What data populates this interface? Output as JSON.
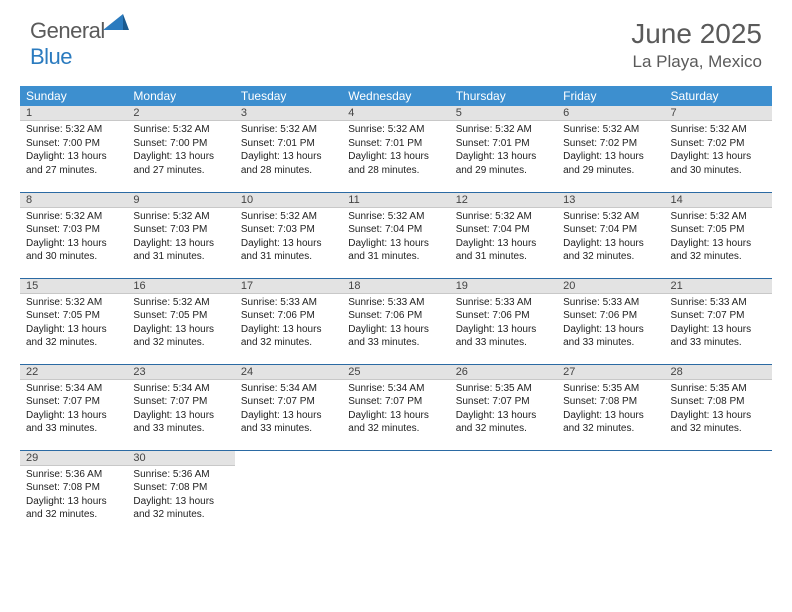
{
  "brand": {
    "part1": "General",
    "part2": "Blue"
  },
  "title": "June 2025",
  "location": "La Playa, Mexico",
  "colors": {
    "header_bg": "#3d8fcf",
    "row_divider": "#2b6aa3",
    "daynum_bg": "#e3e3e3",
    "text": "#333333",
    "brand_gray": "#5a5a5a",
    "brand_blue": "#2b7bbf"
  },
  "day_headers": [
    "Sunday",
    "Monday",
    "Tuesday",
    "Wednesday",
    "Thursday",
    "Friday",
    "Saturday"
  ],
  "weeks": [
    [
      {
        "n": "1",
        "sr": "5:32 AM",
        "ss": "7:00 PM",
        "dl": "13 hours and 27 minutes."
      },
      {
        "n": "2",
        "sr": "5:32 AM",
        "ss": "7:00 PM",
        "dl": "13 hours and 27 minutes."
      },
      {
        "n": "3",
        "sr": "5:32 AM",
        "ss": "7:01 PM",
        "dl": "13 hours and 28 minutes."
      },
      {
        "n": "4",
        "sr": "5:32 AM",
        "ss": "7:01 PM",
        "dl": "13 hours and 28 minutes."
      },
      {
        "n": "5",
        "sr": "5:32 AM",
        "ss": "7:01 PM",
        "dl": "13 hours and 29 minutes."
      },
      {
        "n": "6",
        "sr": "5:32 AM",
        "ss": "7:02 PM",
        "dl": "13 hours and 29 minutes."
      },
      {
        "n": "7",
        "sr": "5:32 AM",
        "ss": "7:02 PM",
        "dl": "13 hours and 30 minutes."
      }
    ],
    [
      {
        "n": "8",
        "sr": "5:32 AM",
        "ss": "7:03 PM",
        "dl": "13 hours and 30 minutes."
      },
      {
        "n": "9",
        "sr": "5:32 AM",
        "ss": "7:03 PM",
        "dl": "13 hours and 31 minutes."
      },
      {
        "n": "10",
        "sr": "5:32 AM",
        "ss": "7:03 PM",
        "dl": "13 hours and 31 minutes."
      },
      {
        "n": "11",
        "sr": "5:32 AM",
        "ss": "7:04 PM",
        "dl": "13 hours and 31 minutes."
      },
      {
        "n": "12",
        "sr": "5:32 AM",
        "ss": "7:04 PM",
        "dl": "13 hours and 31 minutes."
      },
      {
        "n": "13",
        "sr": "5:32 AM",
        "ss": "7:04 PM",
        "dl": "13 hours and 32 minutes."
      },
      {
        "n": "14",
        "sr": "5:32 AM",
        "ss": "7:05 PM",
        "dl": "13 hours and 32 minutes."
      }
    ],
    [
      {
        "n": "15",
        "sr": "5:32 AM",
        "ss": "7:05 PM",
        "dl": "13 hours and 32 minutes."
      },
      {
        "n": "16",
        "sr": "5:32 AM",
        "ss": "7:05 PM",
        "dl": "13 hours and 32 minutes."
      },
      {
        "n": "17",
        "sr": "5:33 AM",
        "ss": "7:06 PM",
        "dl": "13 hours and 32 minutes."
      },
      {
        "n": "18",
        "sr": "5:33 AM",
        "ss": "7:06 PM",
        "dl": "13 hours and 33 minutes."
      },
      {
        "n": "19",
        "sr": "5:33 AM",
        "ss": "7:06 PM",
        "dl": "13 hours and 33 minutes."
      },
      {
        "n": "20",
        "sr": "5:33 AM",
        "ss": "7:06 PM",
        "dl": "13 hours and 33 minutes."
      },
      {
        "n": "21",
        "sr": "5:33 AM",
        "ss": "7:07 PM",
        "dl": "13 hours and 33 minutes."
      }
    ],
    [
      {
        "n": "22",
        "sr": "5:34 AM",
        "ss": "7:07 PM",
        "dl": "13 hours and 33 minutes."
      },
      {
        "n": "23",
        "sr": "5:34 AM",
        "ss": "7:07 PM",
        "dl": "13 hours and 33 minutes."
      },
      {
        "n": "24",
        "sr": "5:34 AM",
        "ss": "7:07 PM",
        "dl": "13 hours and 33 minutes."
      },
      {
        "n": "25",
        "sr": "5:34 AM",
        "ss": "7:07 PM",
        "dl": "13 hours and 32 minutes."
      },
      {
        "n": "26",
        "sr": "5:35 AM",
        "ss": "7:07 PM",
        "dl": "13 hours and 32 minutes."
      },
      {
        "n": "27",
        "sr": "5:35 AM",
        "ss": "7:08 PM",
        "dl": "13 hours and 32 minutes."
      },
      {
        "n": "28",
        "sr": "5:35 AM",
        "ss": "7:08 PM",
        "dl": "13 hours and 32 minutes."
      }
    ],
    [
      {
        "n": "29",
        "sr": "5:36 AM",
        "ss": "7:08 PM",
        "dl": "13 hours and 32 minutes."
      },
      {
        "n": "30",
        "sr": "5:36 AM",
        "ss": "7:08 PM",
        "dl": "13 hours and 32 minutes."
      },
      null,
      null,
      null,
      null,
      null
    ]
  ],
  "labels": {
    "sunrise": "Sunrise: ",
    "sunset": "Sunset: ",
    "daylight": "Daylight: "
  }
}
